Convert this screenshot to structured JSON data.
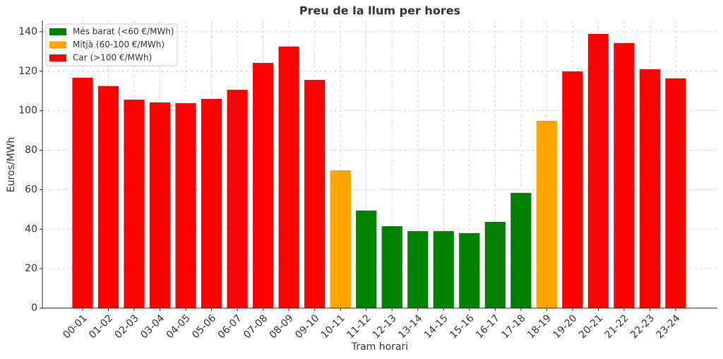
{
  "chart_data": {
    "type": "bar",
    "title": "Preu de la llum per hores",
    "x_label": "Tram horari",
    "y_label": "Euros/MWh",
    "categories": [
      "00-01",
      "01-02",
      "02-03",
      "03-04",
      "04-05",
      "05-06",
      "06-07",
      "07-08",
      "08-09",
      "09-10",
      "10-11",
      "11-12",
      "12-13",
      "13-14",
      "14-15",
      "15-16",
      "16-17",
      "17-18",
      "18-19",
      "19-20",
      "20-21",
      "21-22",
      "22-23",
      "23-24"
    ],
    "values": [
      116.7,
      112.5,
      105.6,
      104.2,
      103.8,
      106,
      110.6,
      124.2,
      132.5,
      115.6,
      69.8,
      49.4,
      41.5,
      39,
      39,
      38,
      43.7,
      58.4,
      94.9,
      119.9,
      138.9,
      134.3,
      121,
      116.4
    ],
    "bar_colors": [
      "#ff0000",
      "#ff0000",
      "#ff0000",
      "#ff0000",
      "#ff0000",
      "#ff0000",
      "#ff0000",
      "#ff0000",
      "#ff0000",
      "#ff0000",
      "#ffa500",
      "#008000",
      "#008000",
      "#008000",
      "#008000",
      "#008000",
      "#008000",
      "#008000",
      "#ffa500",
      "#ff0000",
      "#ff0000",
      "#ff0000",
      "#ff0000",
      "#ff0000"
    ],
    "legend": [
      {
        "label": "Més barat (<60 €/MWh)",
        "color": "#008000"
      },
      {
        "label": "Mitjà (60-100 €/MWh)",
        "color": "#ffa500"
      },
      {
        "label": "Car (>100 €/MWh)",
        "color": "#ff0000"
      }
    ],
    "legend_position": "upper-left",
    "ylim": [
      0,
      145.7
    ],
    "yticks": [
      0,
      20,
      40,
      60,
      80,
      100,
      120,
      140
    ],
    "grid": true
  }
}
